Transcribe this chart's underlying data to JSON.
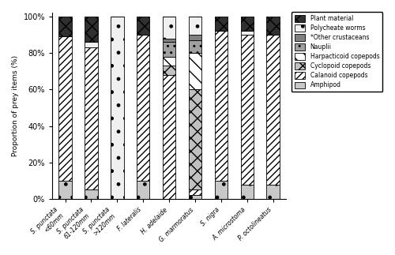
{
  "categories": [
    "S. punctata\n<60mm",
    "S. punctata\n61-120mm",
    "S. punctata\n>120mm",
    "F. lateralis",
    "H. adelaide",
    "G. marmoratus",
    "S. nigra",
    "A. microstoma",
    "P. octolineatus"
  ],
  "prey_types": [
    "Amphipod",
    "Calanoid copepods",
    "Cyclopoid copepods",
    "Harpacticoid copepods",
    "Nauplii",
    "*Other crustaceans",
    "Polycheate worms",
    "Plant material"
  ],
  "data": {
    "Amphipod": [
      10,
      5,
      0,
      10,
      0,
      2,
      10,
      8,
      8
    ],
    "Calanoid copepods": [
      79,
      78,
      0,
      80,
      68,
      3,
      82,
      82,
      82
    ],
    "Cyclopoid copepods": [
      0,
      0,
      0,
      0,
      5,
      55,
      0,
      0,
      0
    ],
    "Harpacticoid copepods": [
      0,
      0,
      0,
      0,
      5,
      20,
      0,
      0,
      0
    ],
    "Nauplii": [
      0,
      0,
      0,
      0,
      8,
      7,
      0,
      0,
      0
    ],
    "*Other crustaceans": [
      0,
      0,
      0,
      0,
      2,
      3,
      0,
      0,
      0
    ],
    "Polycheate worms": [
      0,
      3,
      100,
      0,
      12,
      10,
      0,
      2,
      0
    ],
    "Plant material": [
      11,
      14,
      0,
      10,
      0,
      0,
      8,
      8,
      10
    ]
  },
  "ylabel": "Proportion of prey items (%)",
  "yticks": [
    0,
    20,
    40,
    60,
    80,
    100
  ],
  "yticklabels": [
    "0%",
    "20%",
    "40%",
    "60%",
    "80%",
    "100%"
  ]
}
